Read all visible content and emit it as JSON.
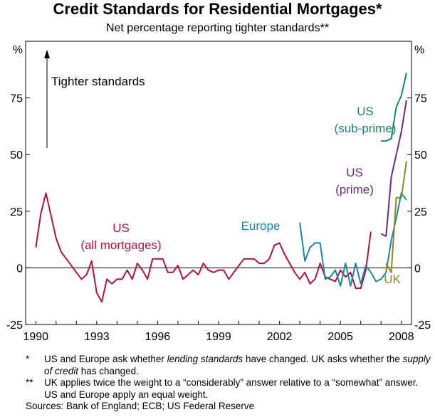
{
  "chart_data": {
    "type": "line",
    "title": "Credit Standards for Residential Mortgages*",
    "subtitle": "Net percentage reporting tighter standards**",
    "ylabel_left": "%",
    "ylabel_right": "%",
    "ylim": [
      -25,
      100
    ],
    "xlim": [
      1989.5,
      2008.5
    ],
    "y_ticks": [
      -25,
      0,
      25,
      50,
      75
    ],
    "x_ticks": [
      1990,
      1993,
      1996,
      1999,
      2002,
      2005,
      2008
    ],
    "annotation_arrow": "Tighter standards",
    "series": [
      {
        "name": "US (all mortgages)",
        "label_lines": [
          "US",
          "(all mortgages)"
        ],
        "color": "#b5123a",
        "x": [
          1990.0,
          1990.25,
          1990.5,
          1990.75,
          1991.0,
          1991.25,
          1991.5,
          1991.75,
          1992.0,
          1992.25,
          1992.5,
          1992.75,
          1993.0,
          1993.25,
          1993.5,
          1993.75,
          1994.0,
          1994.25,
          1994.5,
          1994.75,
          1995.0,
          1995.25,
          1995.5,
          1995.75,
          1996.0,
          1996.25,
          1996.5,
          1996.75,
          1997.0,
          1997.25,
          1997.5,
          1997.75,
          1998.0,
          1998.25,
          1998.5,
          1998.75,
          1999.0,
          1999.25,
          1999.5,
          1999.75,
          2000.0,
          2000.25,
          2000.5,
          2000.75,
          2001.0,
          2001.25,
          2001.5,
          2001.75,
          2002.0,
          2002.25,
          2002.5,
          2002.75,
          2003.0,
          2003.25,
          2003.5,
          2003.75,
          2004.0,
          2004.25,
          2004.5,
          2004.75,
          2005.0,
          2005.25,
          2005.5,
          2005.75,
          2006.0,
          2006.25,
          2006.5
        ],
        "values": [
          9,
          24,
          33,
          23,
          13,
          7,
          4,
          1,
          -2,
          -5,
          -3,
          3,
          -11,
          -15,
          -5,
          -7,
          -5,
          -5,
          -1,
          -5,
          2,
          -1,
          -5,
          4,
          4,
          4,
          -2,
          -2,
          1,
          -5,
          -3,
          -1,
          -3,
          2,
          -1,
          -2,
          -1,
          -1,
          -5,
          -2,
          1,
          4,
          4,
          4,
          2,
          2,
          4,
          10,
          11,
          6,
          2,
          -2,
          -5,
          -2,
          -7,
          -5,
          2,
          -4,
          -5,
          -6,
          -1,
          -4,
          -2,
          -9,
          -9,
          -1,
          16
        ]
      },
      {
        "name": "Europe",
        "label_lines": [
          "Europe"
        ],
        "color": "#1a87a8",
        "x": [
          2003.0,
          2003.25,
          2003.5,
          2003.75,
          2004.0,
          2004.25,
          2004.5,
          2004.75,
          2005.0,
          2005.25,
          2005.5,
          2005.75,
          2006.0,
          2006.25,
          2006.5,
          2006.75,
          2007.0,
          2007.25,
          2007.5,
          2007.75,
          2008.0,
          2008.25
        ],
        "values": [
          20,
          3,
          9,
          11,
          11,
          -5,
          -4,
          -1,
          -8,
          2,
          -8,
          2,
          -7,
          1,
          -2,
          -6,
          -5,
          -2,
          12,
          22,
          33,
          30
        ]
      },
      {
        "name": "UK",
        "label_lines": [
          "UK"
        ],
        "color": "#8a8a1e",
        "x": [
          2007.25,
          2007.5,
          2007.75,
          2008.0,
          2008.25
        ],
        "values": [
          2,
          -2,
          31,
          31,
          47
        ]
      },
      {
        "name": "US (prime)",
        "label_lines": [
          "US",
          "(prime)"
        ],
        "color": "#6b2a7e",
        "x": [
          2007.0,
          2007.25,
          2007.5,
          2007.75,
          2008.0,
          2008.25
        ],
        "values": [
          15,
          14,
          40,
          50,
          60,
          74
        ]
      },
      {
        "name": "US (sub-prime)",
        "label_lines": [
          "US",
          "(sub-prime)"
        ],
        "color": "#17866e",
        "x": [
          2007.0,
          2007.25,
          2007.5,
          2007.75,
          2008.0,
          2008.25
        ],
        "values": [
          56,
          56,
          57,
          71,
          76,
          86
        ]
      }
    ]
  },
  "notes": [
    {
      "mark": "*",
      "text": "US and Europe ask whether lending standards have changed. UK asks whether the supply of credit has changed."
    },
    {
      "mark": "**",
      "text": "UK applies twice the weight to a “considerably” answer relative to a “somewhat” answer. US and Europe apply an equal weight."
    }
  ],
  "source": "Sources: Bank of England; ECB; US Federal Reserve"
}
